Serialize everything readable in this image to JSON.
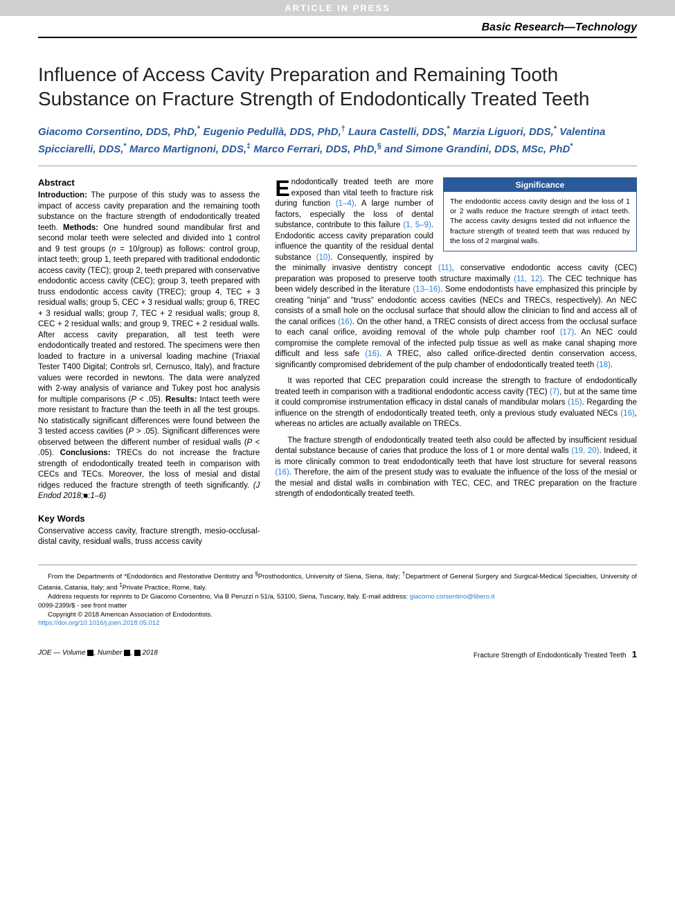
{
  "banner": "ARTICLE IN PRESS",
  "section_label": "Basic Research—Technology",
  "title": "Influence of Access Cavity Preparation and Remaining Tooth Substance on Fracture Strength of Endodontically Treated Teeth",
  "authors_html": "Giacomo Corsentino, DDS, PhD,<span class='sup'>*</span> Eugenio Pedullà, DDS, PhD,<span class='sup'>†</span> Laura Castelli, DDS,<span class='sup'>*</span> Marzia Liguori, DDS,<span class='sup'>*</span> Valentina Spicciarelli, DDS,<span class='sup'>*</span> Marco Martignoni, DDS,<span class='sup'>‡</span> Marco Ferrari, DDS, PhD,<span class='sup'>§</span> and Simone Grandini, DDS, MSc, PhD<span class='sup'>*</span>",
  "abstract_heading": "Abstract",
  "abstract_html": "<b>Introduction:</b> The purpose of this study was to assess the impact of access cavity preparation and the remaining tooth substance on the fracture strength of endodontically treated teeth. <b>Methods:</b> One hundred sound mandibular first and second molar teeth were selected and divided into 1 control and 9 test groups (<i>n</i> = 10/group) as follows: control group, intact teeth; group 1, teeth prepared with traditional endodontic access cavity (TEC); group 2, teeth prepared with conservative endodontic access cavity (CEC); group 3, teeth prepared with truss endodontic access cavity (TREC); group 4, TEC + 3 residual walls; group 5, CEC + 3 residual walls; group 6, TREC + 3 residual walls; group 7, TEC + 2 residual walls; group 8, CEC + 2 residual walls; and group 9, TREC + 2 residual walls. After access cavity preparation, all test teeth were endodontically treated and restored. The specimens were then loaded to fracture in a universal loading machine (Triaxial Tester T400 Digital; Controls srl, Cernusco, Italy), and fracture values were recorded in newtons. The data were analyzed with 2-way analysis of variance and Tukey post hoc analysis for multiple comparisons (<i>P</i> &lt; .05). <b>Results:</b> Intact teeth were more resistant to fracture than the teeth in all the test groups. No statistically significant differences were found between the 3 tested access cavities (<i>P</i> &gt; .05). Significant differences were observed between the different number of residual walls (<i>P</i> &lt; .05). <b>Conclusions:</b> TRECs do not increase the fracture strength of endodontically treated teeth in comparison with CECs and TECs. Moreover, the loss of mesial and distal ridges reduced the fracture strength of teeth significantly. <i>(J Endod 2018;■:1–6)</i>",
  "keywords_heading": "Key Words",
  "keywords_body": "Conservative access cavity, fracture strength, mesio-occlusal-distal cavity, residual walls, truss access cavity",
  "significance": {
    "heading": "Significance",
    "body": "The endodontic access cavity design and the loss of 1 or 2 walls reduce the fracture strength of intact teeth. The access cavity designs tested did not influence the fracture strength of treated teeth that was reduced by the loss of 2 marginal walls."
  },
  "body": {
    "p1_html": "<span class='dropcap'>E</span>ndodontically treated teeth are more exposed than vital teeth to fracture risk during function <span class='ref-link'>(1–4)</span>. A large number of factors, especially the loss of dental substance, contribute to this failure <span class='ref-link'>(1, 5–9)</span>. Endodontic access cavity preparation could influence the quantity of the residual dental substance <span class='ref-link'>(10)</span>. Consequently, inspired by the minimally invasive dentistry concept <span class='ref-link'>(11)</span>, conservative endodontic access cavity (CEC) preparation was proposed to preserve tooth structure maximally <span class='ref-link'>(11, 12)</span>. The CEC technique has been widely described in the literature <span class='ref-link'>(13–16)</span>. Some endodontists have emphasized this principle by creating \"ninja\" and \"truss\" endodontic access cavities (NECs and TRECs, respectively). An NEC consists of a small hole on the occlusal surface that should allow the clinician to find and access all of the canal orifices <span class='ref-link'>(16)</span>. On the other hand, a TREC consists of direct access from the occlusal surface to each canal orifice, avoiding removal of the whole pulp chamber roof <span class='ref-link'>(17)</span>. An NEC could compromise the complete removal of the infected pulp tissue as well as make canal shaping more difficult and less safe <span class='ref-link'>(16)</span>. A TREC, also called orifice-directed dentin conservation access, significantly compromised debridement of the pulp chamber of endodontically treated teeth <span class='ref-link'>(18)</span>.",
    "p2_html": "It was reported that CEC preparation could increase the strength to fracture of endodontically treated teeth in comparison with a traditional endodontic access cavity (TEC) <span class='ref-link'>(7)</span>, but at the same time it could compromise instrumentation efficacy in distal canals of mandibular molars <span class='ref-link'>(15)</span>. Regarding the influence on the strength of endodontically treated teeth, only a previous study evaluated NECs <span class='ref-link'>(16)</span>, whereas no articles are actually available on TRECs.",
    "p3_html": "The fracture strength of endodontically treated teeth also could be affected by insufficient residual dental substance because of caries that produce the loss of 1 or more dental walls <span class='ref-link'>(19, 20)</span>. Indeed, it is more clinically common to treat endodontically teeth that have lost structure for several reasons <span class='ref-link'>(16)</span>. Therefore, the aim of the present study was to evaluate the influence of the loss of the mesial or the mesial and distal walls in combination with TEC, CEC, and TREC preparation on the fracture strength of endodontically treated teeth."
  },
  "footnotes": {
    "affil_html": "From the Departments of *Endodontics and Restorative Dentistry and <sup>§</sup>Prosthodontics, University of Siena, Siena, Italy; <sup>†</sup>Department of General Surgery and Surgical-Medical Specialties, University of Catania, Catania, Italy; and <sup>‡</sup>Private Practice, Rome, Italy.",
    "corr_html": "Address requests for reprints to Dr Giacomo Corsentino, Via B Peruzzi n 51/a, 53100, Siena, Tuscany, Italy. E-mail address: <span class='email-link'>giacomo.corsentino@libero.it</span>",
    "issn": "0099-2399/$ - see front matter",
    "copyright": "Copyright © 2018 American Association of Endodontists.",
    "doi": "https://doi.org/10.1016/j.joen.2018.05.012"
  },
  "footer": {
    "left_html": "JOE — Volume <span class='blk'></span>, Number <span class='blk'></span>, <span class='blk'></span> 2018",
    "right_text": "Fracture Strength of Endodontically Treated Teeth",
    "page": "1"
  },
  "colors": {
    "link": "#2a7fd4",
    "author": "#2a5a9a",
    "banner_bg": "#d0d0d0",
    "signif_bg": "#2a5a9a"
  },
  "typography": {
    "title_size": 28,
    "body_size": 11.5,
    "footnote_size": 9.5
  }
}
